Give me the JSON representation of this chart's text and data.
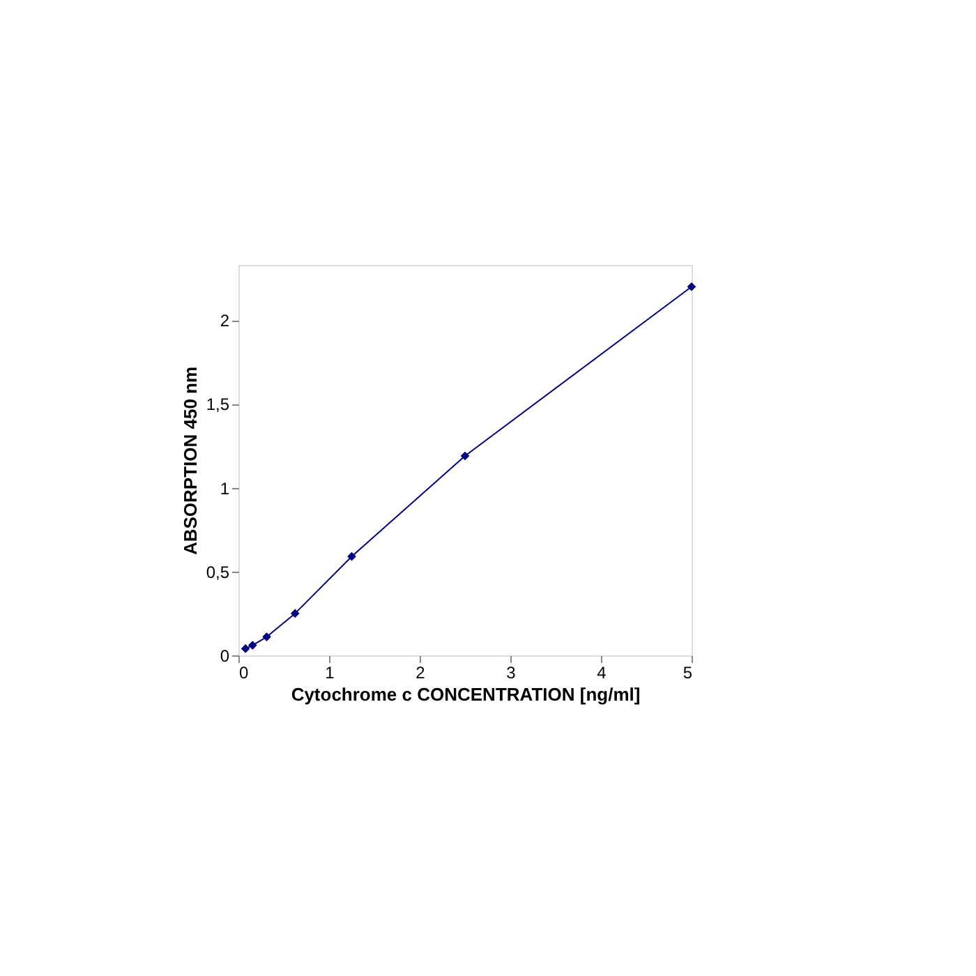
{
  "chart_data": {
    "type": "line",
    "xlabel": "Cytochrome c CONCENTRATION [ng/ml]",
    "ylabel": "ABSORPTION 450 nm",
    "x": [
      0.078,
      0.156,
      0.312,
      0.625,
      1.25,
      2.5,
      5
    ],
    "series": [
      {
        "color": "#000080",
        "values": [
          0.04,
          0.06,
          0.11,
          0.25,
          0.59,
          1.19,
          2.2
        ]
      }
    ],
    "xlim": [
      0,
      5
    ],
    "xticks": [
      0,
      1,
      2,
      3,
      4,
      5
    ],
    "ylim": [
      0,
      2.33
    ],
    "yticks": [
      0,
      {
        "value": 0.5,
        "label": "0,5"
      },
      1,
      {
        "value": 1.5,
        "label": "1,5"
      },
      2
    ],
    "grid": false,
    "marker": "diamond",
    "line_style": "solid"
  }
}
